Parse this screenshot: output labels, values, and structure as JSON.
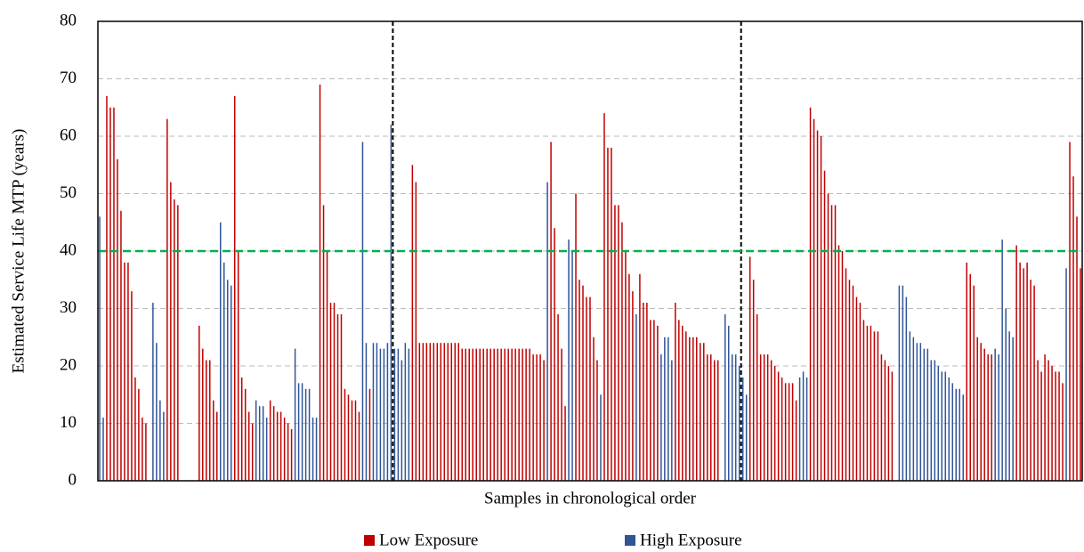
{
  "chart_data": {
    "type": "bar",
    "y_label": "Estimated Service Life MTP (years)",
    "x_label": "Samples in chronological order",
    "ylim": [
      0,
      80
    ],
    "yticks": [
      0,
      10,
      20,
      30,
      40,
      50,
      60,
      70,
      80
    ],
    "grid": true,
    "legend": "bottom",
    "threshold": {
      "value": 40,
      "color": "#00b050"
    },
    "categories": [
      null,
      null,
      null,
      null,
      null,
      null,
      null,
      null,
      null,
      null,
      null,
      null,
      null,
      null,
      null,
      null,
      null,
      null,
      null,
      null,
      null,
      null,
      null,
      null,
      null,
      null,
      null,
      null,
      null,
      null,
      null,
      null,
      null,
      null,
      null,
      null,
      null,
      null,
      null,
      null,
      null,
      null,
      null,
      null,
      null,
      null,
      null,
      null,
      null,
      null,
      null,
      null,
      null,
      null,
      null,
      null,
      null,
      null,
      null,
      null,
      null,
      null,
      null,
      null,
      null,
      null,
      null,
      null,
      null,
      null,
      null,
      null,
      null,
      null,
      null,
      null,
      null,
      null,
      null,
      null,
      null,
      null,
      null,
      null,
      null,
      null,
      null,
      null,
      null,
      null,
      null,
      null,
      null,
      null,
      null,
      null,
      null,
      null,
      null,
      null,
      null,
      null,
      null,
      null,
      null,
      null,
      null,
      null,
      null,
      null,
      null,
      null,
      null,
      null,
      null,
      null,
      null,
      null,
      null,
      null,
      null,
      null,
      null,
      null,
      null,
      null,
      null,
      null,
      null,
      null,
      null,
      null,
      null,
      null,
      null,
      null,
      null,
      null,
      null,
      null,
      null,
      null,
      null,
      null,
      null,
      null,
      null,
      null,
      null,
      null,
      null,
      null,
      null,
      null,
      null,
      null,
      null,
      null,
      null,
      null,
      null,
      null,
      null,
      null,
      null,
      null,
      null,
      null,
      null,
      null,
      null,
      null,
      null,
      null,
      null,
      null,
      null,
      null,
      null,
      null,
      null,
      null,
      null,
      null,
      null,
      null,
      null,
      null,
      null,
      null,
      null,
      null,
      null,
      null,
      null,
      null,
      null,
      null,
      null,
      null,
      null,
      null,
      null,
      null,
      null,
      null,
      null,
      null,
      null,
      null,
      null,
      null,
      null,
      null,
      null,
      null,
      null,
      null,
      null,
      null,
      null,
      null,
      null,
      null,
      null,
      null,
      null,
      null,
      null,
      null,
      null,
      null,
      null,
      null,
      null,
      null,
      null,
      null,
      null,
      null,
      null,
      null,
      null,
      null,
      null,
      null,
      null,
      null,
      null,
      null,
      null,
      null,
      null,
      null,
      null,
      null,
      null,
      null,
      null,
      null,
      null,
      null,
      null,
      null,
      null,
      null,
      null,
      null,
      null,
      null,
      null,
      null,
      null,
      null,
      null,
      null,
      null
    ],
    "series": [
      {
        "name": "Low Exposure",
        "color": "#c00000",
        "values": [
          null,
          null,
          67,
          65,
          65,
          56,
          47,
          38,
          38,
          33,
          18,
          16,
          11,
          10,
          null,
          null,
          null,
          null,
          null,
          63,
          52,
          49,
          48,
          null,
          null,
          null,
          null,
          null,
          27,
          23,
          21,
          21,
          14,
          12,
          null,
          null,
          null,
          null,
          67,
          40,
          18,
          16,
          12,
          10,
          null,
          null,
          null,
          null,
          14,
          13,
          12,
          12,
          11,
          10,
          9,
          null,
          null,
          null,
          null,
          null,
          null,
          null,
          69,
          48,
          40,
          31,
          31,
          29,
          29,
          16,
          15,
          14,
          14,
          12,
          null,
          null,
          16,
          null,
          null,
          null,
          null,
          null,
          null,
          null,
          null,
          null,
          null,
          null,
          55,
          52,
          24,
          24,
          24,
          24,
          24,
          24,
          24,
          24,
          24,
          24,
          24,
          24,
          23,
          23,
          23,
          23,
          23,
          23,
          23,
          23,
          23,
          23,
          23,
          23,
          23,
          23,
          23,
          23,
          23,
          23,
          23,
          23,
          22,
          22,
          22,
          21,
          null,
          59,
          44,
          29,
          23,
          13,
          null,
          null,
          50,
          35,
          34,
          32,
          32,
          25,
          21,
          null,
          64,
          58,
          58,
          48,
          48,
          45,
          40,
          36,
          33,
          null,
          36,
          31,
          31,
          28,
          28,
          27,
          null,
          null,
          null,
          null,
          31,
          28,
          27,
          26,
          25,
          25,
          25,
          24,
          24,
          22,
          22,
          21,
          21,
          null,
          null,
          null,
          null,
          null,
          null,
          null,
          null,
          39,
          35,
          29,
          22,
          22,
          22,
          21,
          20,
          19,
          18,
          17,
          17,
          17,
          14,
          null,
          null,
          null,
          65,
          63,
          61,
          60,
          54,
          50,
          48,
          48,
          41,
          40,
          37,
          35,
          34,
          32,
          31,
          28,
          27,
          27,
          26,
          26,
          22,
          21,
          20,
          19,
          null,
          null,
          null,
          null,
          null,
          null,
          null,
          null,
          null,
          null,
          null,
          null,
          null,
          null,
          null,
          null,
          null,
          null,
          null,
          null,
          38,
          36,
          34,
          25,
          24,
          23,
          22,
          22,
          null,
          null,
          null,
          null,
          null,
          null,
          41,
          38,
          37,
          38,
          35,
          34,
          21,
          19,
          22,
          21,
          20,
          19,
          19,
          17,
          null,
          59,
          53,
          46,
          37
        ]
      },
      {
        "name": "High Exposure",
        "color": "#2f5597",
        "values": [
          46,
          11,
          null,
          null,
          null,
          null,
          null,
          null,
          null,
          null,
          null,
          null,
          null,
          null,
          null,
          31,
          24,
          14,
          12,
          null,
          null,
          null,
          null,
          null,
          null,
          null,
          null,
          null,
          null,
          null,
          null,
          null,
          null,
          null,
          45,
          38,
          35,
          34,
          null,
          null,
          null,
          null,
          null,
          null,
          14,
          13,
          13,
          11,
          null,
          null,
          null,
          null,
          null,
          null,
          null,
          23,
          17,
          17,
          16,
          16,
          11,
          11,
          null,
          null,
          null,
          null,
          null,
          null,
          null,
          null,
          null,
          null,
          null,
          null,
          59,
          24,
          null,
          24,
          24,
          23,
          23,
          24,
          62,
          23,
          23,
          21,
          24,
          23,
          null,
          null,
          null,
          null,
          null,
          null,
          null,
          null,
          null,
          null,
          null,
          null,
          null,
          null,
          null,
          null,
          null,
          null,
          null,
          null,
          null,
          null,
          null,
          null,
          null,
          null,
          null,
          null,
          null,
          null,
          null,
          null,
          null,
          null,
          null,
          null,
          null,
          null,
          52,
          null,
          null,
          null,
          null,
          null,
          42,
          40,
          null,
          null,
          null,
          null,
          null,
          null,
          null,
          15,
          null,
          null,
          null,
          null,
          null,
          null,
          null,
          null,
          null,
          29,
          null,
          null,
          null,
          null,
          null,
          null,
          22,
          25,
          25,
          21,
          null,
          null,
          null,
          null,
          null,
          null,
          null,
          null,
          null,
          null,
          null,
          null,
          null,
          null,
          29,
          27,
          22,
          22,
          20,
          18,
          15,
          null,
          null,
          null,
          null,
          null,
          null,
          null,
          null,
          null,
          null,
          null,
          null,
          null,
          null,
          18,
          19,
          18,
          null,
          null,
          null,
          null,
          null,
          null,
          null,
          null,
          null,
          null,
          null,
          null,
          null,
          null,
          null,
          null,
          null,
          null,
          null,
          null,
          null,
          null,
          null,
          null,
          null,
          34,
          34,
          32,
          26,
          25,
          24,
          24,
          23,
          23,
          21,
          21,
          20,
          19,
          19,
          18,
          17,
          16,
          16,
          15,
          null,
          null,
          null,
          null,
          null,
          null,
          null,
          null,
          23,
          22,
          42,
          30,
          26,
          25,
          null,
          null,
          null,
          null,
          null,
          null,
          null,
          null,
          null,
          null,
          null,
          null,
          null,
          null,
          37,
          null,
          null,
          null,
          null
        ]
      }
    ]
  }
}
